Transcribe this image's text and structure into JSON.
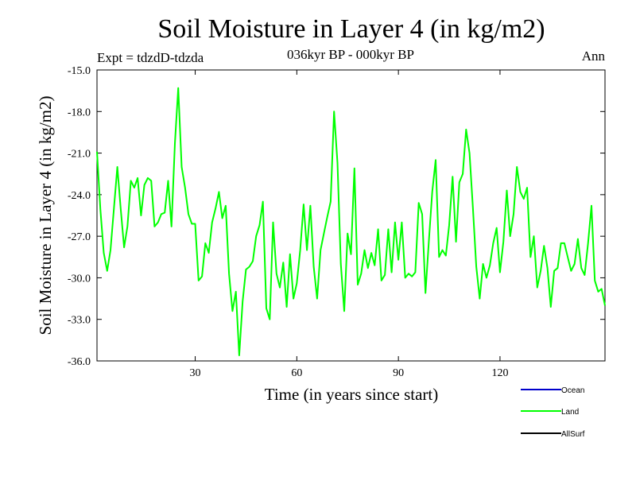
{
  "chart_data": {
    "type": "line",
    "title": "Soil Moisture in Layer 4 (in kg/m2)",
    "subtitle": "036kyr BP - 000kyr BP",
    "expt_label": "Expt = tdzdD-tdzda",
    "season_label": "Ann",
    "xlabel": "Time (in years since start)",
    "ylabel": "Soil Moisture in Layer 4 (in kg/m2)",
    "xlim": [
      1,
      151
    ],
    "ylim": [
      -36.0,
      -15.0
    ],
    "x_ticks": [
      30,
      60,
      90,
      120
    ],
    "y_ticks": [
      -15.0,
      -18.0,
      -21.0,
      -24.0,
      -27.0,
      -30.0,
      -33.0,
      -36.0
    ],
    "x_tick_labels": [
      "30",
      "60",
      "90",
      "120"
    ],
    "y_tick_labels": [
      "-15.0",
      "-18.0",
      "-21.0",
      "-24.0",
      "-27.0",
      "-30.0",
      "-33.0",
      "-36.0"
    ],
    "legend_position": "bottom-right",
    "series": [
      {
        "name": "Ocean",
        "color": "#0000cc",
        "values": []
      },
      {
        "name": "Land",
        "color": "#00ff00",
        "values": [
          -20.9,
          -25.1,
          -28.2,
          -29.5,
          -28.0,
          -25.0,
          -22.0,
          -25.0,
          -27.8,
          -26.3,
          -23.0,
          -23.5,
          -22.8,
          -25.5,
          -23.3,
          -22.8,
          -23.0,
          -26.3,
          -26.0,
          -25.4,
          -25.3,
          -23.0,
          -26.3,
          -20.3,
          -16.3,
          -22.0,
          -23.5,
          -25.4,
          -26.1,
          -26.1,
          -30.2,
          -29.9,
          -27.5,
          -28.2,
          -26.0,
          -25.0,
          -23.8,
          -25.7,
          -24.8,
          -29.7,
          -32.4,
          -31.0,
          -35.6,
          -31.7,
          -29.4,
          -29.2,
          -28.8,
          -27.0,
          -26.2,
          -24.5,
          -32.2,
          -33.0,
          -26.0,
          -29.7,
          -30.7,
          -28.9,
          -32.1,
          -28.3,
          -31.5,
          -30.4,
          -28.0,
          -24.7,
          -28.0,
          -24.8,
          -29.2,
          -31.5,
          -28.0,
          -26.8,
          -25.6,
          -24.5,
          -18.0,
          -21.7,
          -29.0,
          -32.4,
          -26.8,
          -28.3,
          -22.1,
          -30.5,
          -29.7,
          -28.0,
          -29.3,
          -28.2,
          -29.1,
          -26.5,
          -30.2,
          -29.8,
          -26.5,
          -29.6,
          -26.0,
          -28.7,
          -26.0,
          -30.0,
          -29.7,
          -29.9,
          -29.6,
          -24.6,
          -25.4,
          -31.1,
          -27.3,
          -23.8,
          -21.5,
          -28.5,
          -28.0,
          -28.4,
          -26.2,
          -22.7,
          -27.4,
          -23.1,
          -22.5,
          -19.3,
          -21.0,
          -25.0,
          -29.2,
          -31.5,
          -29.0,
          -30.0,
          -29.1,
          -27.5,
          -26.4,
          -29.6,
          -27.4,
          -23.7,
          -27.0,
          -25.4,
          -22.0,
          -23.8,
          -24.3,
          -23.5,
          -28.5,
          -27.0,
          -30.7,
          -29.5,
          -27.7,
          -29.3,
          -32.1,
          -29.5,
          -29.3,
          -27.5,
          -27.5,
          -28.5,
          -29.5,
          -29.0,
          -27.2,
          -29.3,
          -29.8,
          -27.5,
          -24.8,
          -30.2,
          -31.0,
          -30.8,
          -32.0
        ]
      },
      {
        "name": "AllSurf",
        "color": "#000000",
        "values": []
      }
    ]
  }
}
